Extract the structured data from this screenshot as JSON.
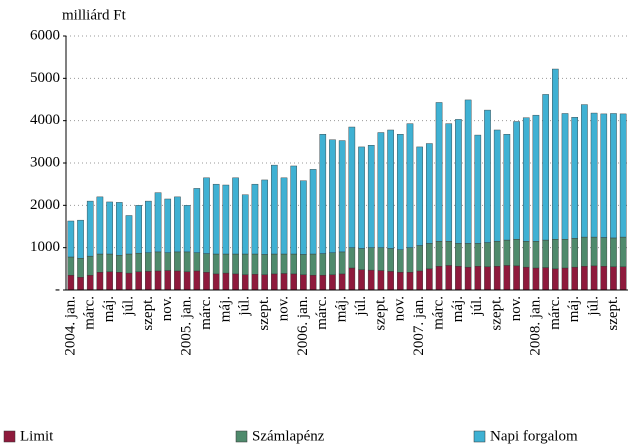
{
  "chart_data": {
    "type": "stacked_bar",
    "y_label": "milliárd Ft",
    "categories": [
      "2004. jan.",
      null,
      "márc.",
      null,
      "máj.",
      null,
      "júl.",
      null,
      "szept.",
      null,
      "nov.",
      null,
      "2005. jan.",
      null,
      "márc.",
      null,
      "máj.",
      null,
      "júl.",
      null,
      "szept.",
      null,
      "nov.",
      null,
      "2006. jan.",
      null,
      "márc.",
      null,
      "máj.",
      null,
      "júl.",
      null,
      "szept.",
      null,
      "nov.",
      null,
      "2007. jan.",
      null,
      "márc.",
      null,
      "máj.",
      null,
      "júl.",
      null,
      "szept.",
      null,
      "nov.",
      null,
      "2008. jan.",
      null,
      "márc.",
      null,
      "máj.",
      null,
      "júl.",
      null,
      "szept.",
      null
    ],
    "series": [
      {
        "name": "Limit",
        "color": "#8e1a3c",
        "values": [
          350,
          300,
          350,
          420,
          430,
          420,
          400,
          430,
          440,
          450,
          460,
          450,
          430,
          450,
          420,
          380,
          400,
          380,
          360,
          370,
          360,
          380,
          390,
          380,
          360,
          350,
          350,
          360,
          380,
          520,
          480,
          470,
          460,
          440,
          420,
          420,
          450,
          500,
          560,
          580,
          560,
          540,
          560,
          550,
          560,
          580,
          570,
          540,
          520,
          530,
          500,
          520,
          540,
          560,
          570,
          560,
          550,
          550
        ]
      },
      {
        "name": "Számlapénz",
        "color": "#4f8a6c",
        "values": [
          430,
          450,
          450,
          430,
          420,
          400,
          450,
          440,
          440,
          450,
          420,
          450,
          470,
          430,
          440,
          470,
          450,
          470,
          490,
          480,
          480,
          470,
          460,
          470,
          480,
          500,
          510,
          520,
          520,
          480,
          500,
          530,
          540,
          540,
          530,
          580,
          600,
          600,
          590,
          570,
          540,
          560,
          540,
          570,
          590,
          600,
          630,
          610,
          630,
          650,
          700,
          680,
          680,
          690,
          680,
          680,
          680,
          700
        ]
      },
      {
        "name": "Napi forgalom",
        "color": "#3fb1d3",
        "values": [
          850,
          900,
          1300,
          1350,
          1230,
          1250,
          910,
          1130,
          1220,
          1400,
          1270,
          1300,
          1100,
          1520,
          1790,
          1650,
          1630,
          1800,
          1400,
          1650,
          1760,
          2100,
          1800,
          2080,
          1740,
          2000,
          2820,
          2670,
          2630,
          2850,
          2400,
          2420,
          2720,
          2800,
          2730,
          2930,
          2330,
          2360,
          3280,
          2780,
          2930,
          3390,
          2560,
          3130,
          2630,
          2500,
          2780,
          2920,
          2980,
          3440,
          4020,
          2970,
          2860,
          3130,
          2930,
          2920,
          2940,
          2910
        ]
      }
    ],
    "ylim": [
      0,
      6000
    ],
    "yticks": [
      {
        "value": 0,
        "label": "-"
      },
      1000,
      2000,
      3000,
      4000,
      5000,
      6000
    ],
    "grid": true,
    "legend": "bottom"
  }
}
